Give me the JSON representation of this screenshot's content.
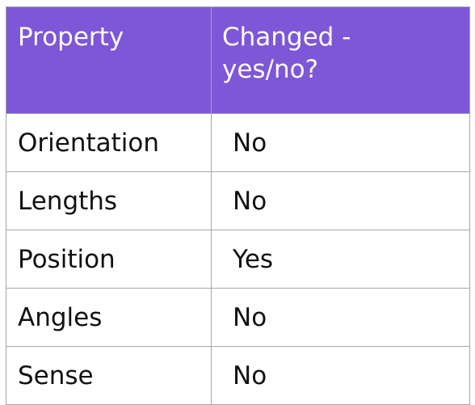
{
  "table": {
    "headers": [
      "Property",
      "Changed - yes/no?"
    ],
    "rows": [
      [
        "Orientation",
        "No"
      ],
      [
        "Lengths",
        "No"
      ],
      [
        "Position",
        "Yes"
      ],
      [
        "Angles",
        "No"
      ],
      [
        "Sense",
        "No"
      ]
    ]
  },
  "colors": {
    "header_bg": "#7e56d8",
    "header_text": "#ffffff",
    "border": "#a6a6a6"
  }
}
